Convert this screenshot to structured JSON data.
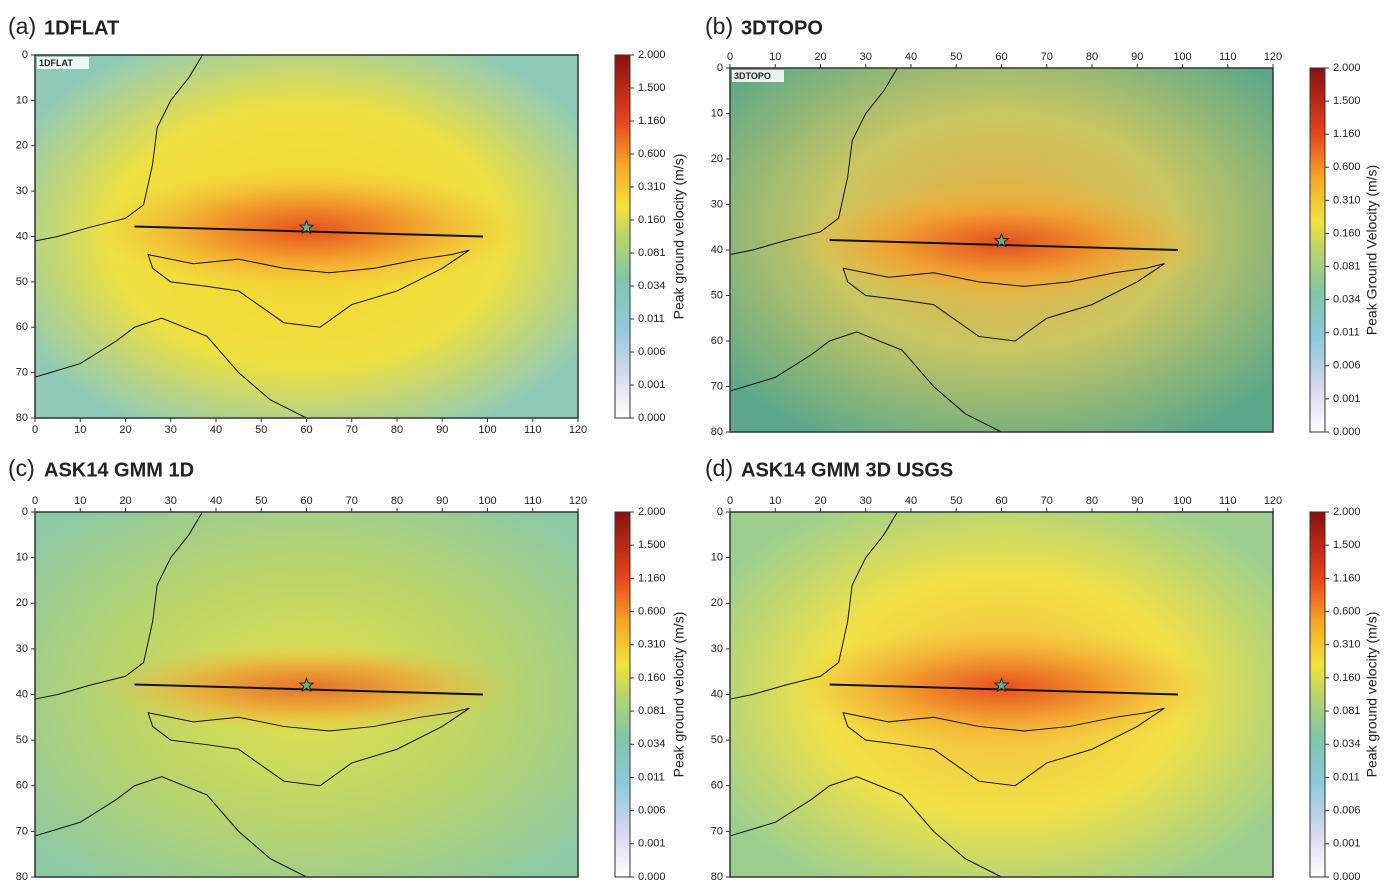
{
  "panels": [
    {
      "letter": "(a)",
      "title": "1DFLAT",
      "inset": "1DFLAT",
      "xticks": [
        0,
        10,
        20,
        30,
        40,
        50,
        60,
        70,
        80,
        90,
        100,
        110,
        120
      ],
      "yticks": [
        0,
        10,
        20,
        30,
        40,
        50,
        60,
        70,
        80
      ],
      "colorbar_label": "Peak ground velocity (m/s)",
      "colorbar_ticks": [
        "2.000",
        "1.500",
        "1.160",
        "0.600",
        "0.310",
        "0.160",
        "0.081",
        "0.034",
        "0.011",
        "0.006",
        "0.001",
        "0.000"
      ]
    },
    {
      "letter": "(b)",
      "title": "3DTOPO",
      "inset": "3DTOPO",
      "xticks": [
        0,
        10,
        20,
        30,
        40,
        50,
        60,
        70,
        80,
        90,
        100,
        110,
        120
      ],
      "yticks": [
        0,
        10,
        20,
        30,
        40,
        50,
        60,
        70,
        80
      ],
      "colorbar_label": "Peak Ground Velocity (m/s)",
      "colorbar_ticks": [
        "2.000",
        "1.500",
        "1.160",
        "0.600",
        "0.310",
        "0.160",
        "0.081",
        "0.034",
        "0.011",
        "0.006",
        "0.001",
        "0.000"
      ]
    },
    {
      "letter": "(c)",
      "title": "ASK14 GMM 1D",
      "xticks": [
        0,
        10,
        20,
        30,
        40,
        50,
        60,
        70,
        80,
        90,
        100,
        110,
        120
      ],
      "yticks": [
        0,
        10,
        20,
        30,
        40,
        50,
        60,
        70,
        80
      ],
      "colorbar_label": "Peak ground velocity (m/s)",
      "colorbar_ticks": [
        "2.000",
        "1.500",
        "1.160",
        "0.600",
        "0.310",
        "0.160",
        "0.081",
        "0.034",
        "0.011",
        "0.006",
        "0.001",
        "0.000"
      ]
    },
    {
      "letter": "(d)",
      "title": "ASK14 GMM 3D USGS",
      "xticks": [
        0,
        10,
        20,
        30,
        40,
        50,
        60,
        70,
        80,
        90,
        100,
        110,
        120
      ],
      "yticks": [
        0,
        10,
        20,
        30,
        40,
        50,
        60,
        70,
        80
      ],
      "colorbar_label": "Peak ground velocity (m/s)",
      "colorbar_ticks": [
        "2.000",
        "1.500",
        "1.160",
        "0.600",
        "0.310",
        "0.160",
        "0.081",
        "0.034",
        "0.011",
        "0.006",
        "0.001",
        "0.000"
      ]
    }
  ]
}
